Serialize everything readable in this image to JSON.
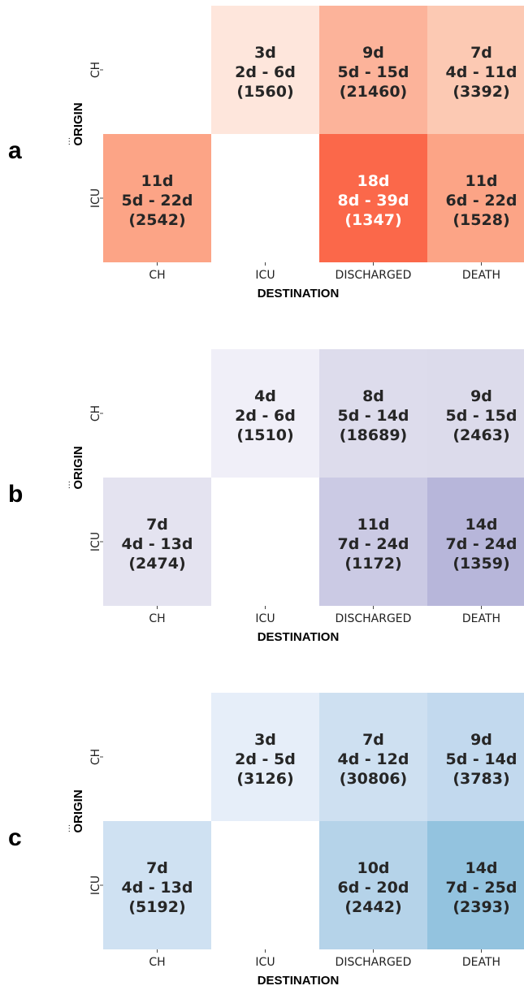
{
  "chart_data": [
    {
      "type": "heatmap",
      "panel": "a",
      "xlabel": "DESTINATION",
      "ylabel": "ORIGIN",
      "ylabel_prefix": "...",
      "x_categories": [
        "CH",
        "ICU",
        "DISCHARGED",
        "DEATH"
      ],
      "y_categories": [
        "CH",
        "ICU"
      ],
      "cells": [
        [
          null,
          {
            "median": "3d",
            "iqr": "2d - 6d",
            "n": "(1560)",
            "color": "#fee6dc"
          },
          {
            "median": "9d",
            "iqr": "5d - 15d",
            "n": "(21460)",
            "color": "#fcb39a"
          },
          {
            "median": "7d",
            "iqr": "4d - 11d",
            "n": "(3392)",
            "color": "#fcc9b3"
          }
        ],
        [
          {
            "median": "11d",
            "iqr": "5d - 22d",
            "n": "(2542)",
            "color": "#fca486"
          },
          null,
          {
            "median": "18d",
            "iqr": "8d - 39d",
            "n": "(1347)",
            "color": "#fb684a"
          },
          {
            "median": "11d",
            "iqr": "6d - 22d",
            "n": "(1528)",
            "color": "#fca486"
          }
        ]
      ]
    },
    {
      "type": "heatmap",
      "panel": "b",
      "xlabel": "DESTINATION",
      "ylabel": "ORIGIN",
      "ylabel_prefix": "...",
      "x_categories": [
        "CH",
        "ICU",
        "DISCHARGED",
        "DEATH"
      ],
      "y_categories": [
        "CH",
        "ICU"
      ],
      "cells": [
        [
          null,
          {
            "median": "4d",
            "iqr": "2d - 6d",
            "n": "(1510)",
            "color": "#f0eff8"
          },
          {
            "median": "8d",
            "iqr": "5d - 14d",
            "n": "(18689)",
            "color": "#dddcec"
          },
          {
            "median": "9d",
            "iqr": "5d - 15d",
            "n": "(2463)",
            "color": "#dcdbeb"
          }
        ],
        [
          {
            "median": "7d",
            "iqr": "4d - 13d",
            "n": "(2474)",
            "color": "#e4e3f0"
          },
          null,
          {
            "median": "11d",
            "iqr": "7d - 24d",
            "n": "(1172)",
            "color": "#cbcae4"
          },
          {
            "median": "14d",
            "iqr": "7d - 24d",
            "n": "(1359)",
            "color": "#b7b6da"
          }
        ]
      ]
    },
    {
      "type": "heatmap",
      "panel": "c",
      "xlabel": "DESTINATION",
      "ylabel": "ORIGIN",
      "ylabel_prefix": "...",
      "x_categories": [
        "CH",
        "ICU",
        "DISCHARGED",
        "DEATH"
      ],
      "y_categories": [
        "CH",
        "ICU"
      ],
      "cells": [
        [
          null,
          {
            "median": "3d",
            "iqr": "2d - 5d",
            "n": "(3126)",
            "color": "#e6eef9"
          },
          {
            "median": "7d",
            "iqr": "4d - 12d",
            "n": "(30806)",
            "color": "#cee0f1"
          },
          {
            "median": "9d",
            "iqr": "5d - 14d",
            "n": "(3783)",
            "color": "#c2d9ee"
          }
        ],
        [
          {
            "median": "7d",
            "iqr": "4d - 13d",
            "n": "(5192)",
            "color": "#cfe1f2"
          },
          null,
          {
            "median": "10d",
            "iqr": "6d - 20d",
            "n": "(2442)",
            "color": "#b5d3e9"
          },
          {
            "median": "14d",
            "iqr": "7d - 25d",
            "n": "(2393)",
            "color": "#93c3df"
          }
        ]
      ]
    }
  ],
  "text_colors": {
    "dark": "#262626",
    "light": "#ffffff"
  },
  "light_text_cells": [
    [
      0,
      1,
      2
    ]
  ]
}
